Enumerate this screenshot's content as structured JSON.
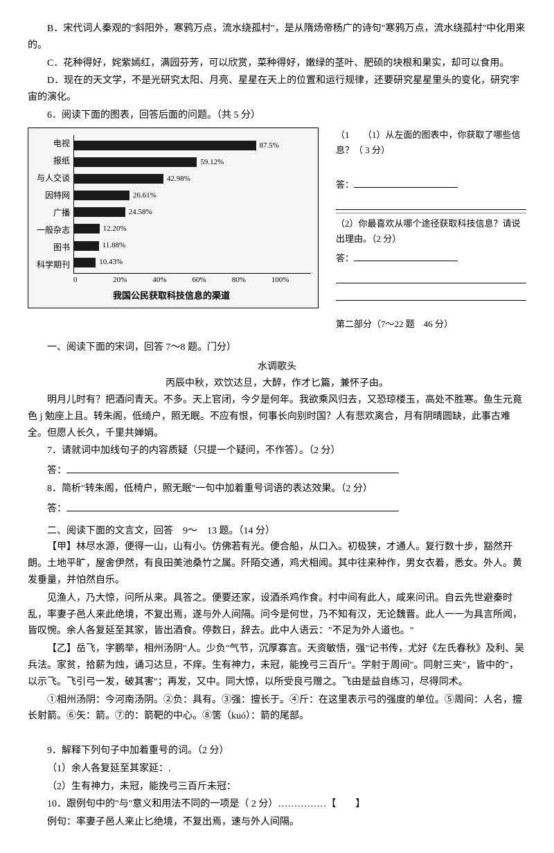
{
  "options": {
    "b": "B．宋代词人秦观的\"斜阳外，寒鸦万点，流水绕孤村\"，是从隋炀帝杨广的诗句\"寒鸦万点，流水绕孤村\"中化用来的。",
    "c": "C．花种得好，姹紫嫣红，满园芬芳，可以欣赏，菜种得好，嫩绿的茎叶、肥硕的块根和果实，却可以食用。",
    "d": "D．现在的天文学，不是光研究太阳、月亮、星星在天上的位置和运行规律，还要研究星星里头的变化，研究宇宙的演化。"
  },
  "q6": {
    "intro": "6．阅读下面的图表，回答后面的问题。（共 5 分）",
    "sub1_prefix": "（1",
    "sub1": "（1）从左面的图表中，你获取了哪些信息？（ 3 分）",
    "answer_label": "答：",
    "sub2": "（2）你最喜欢从哪个途径获取科技信息？请说出理由。（2 分）"
  },
  "chart": {
    "title": "我国公民获取科技信息的渠道",
    "y_labels": [
      "电视",
      "报纸",
      "与人交谈",
      "因特网",
      "广播",
      "一般杂志",
      "图书",
      "科学期刊"
    ],
    "values": [
      87.5,
      59.12,
      42.98,
      26.61,
      24.58,
      12.2,
      11.88,
      10.43
    ],
    "value_labels": [
      "87.5%",
      "59.12%",
      "42.98%",
      "26.61%",
      "24.58%",
      "12.20%",
      "11.88%",
      "10.43%"
    ],
    "x_ticks": [
      "0",
      "20%",
      "40%",
      "60%",
      "80%",
      "100%"
    ],
    "bar_color": "#1a1a1a",
    "bg_color": "#f5f5f5"
  },
  "part2_label": "第二部分（7～22 题　46 分）",
  "section1": {
    "heading": "一、阅读下面的宋词，回答 7～8 题。门分）",
    "title": "水调歌头",
    "subtitle": "丙辰中秋，欢饮达旦，大醉，作才匕篇，兼怀子由。",
    "body": "明月儿时有？把酒问青天。不多。天上官闭，今夕是何年。我欲乘风归去，又恐琼楼玉，高处不胜寒。鱼生元竟色 j 勉座上且。转朱阁，低绮户，照无眠。不应有恨，何事长向别时国？人有悲欢离合，月有阴晴圆缺，此事古难全。但愿人长久，千里共婵娟。",
    "q7": "7．请就词中加线句子的内容质疑（只提一个疑问，不作答）。（2 分）",
    "q7_ans": "答：",
    "q8": "8．简析\"转朱阁，低椅户，照无眠\"一句中加着重号词语的表达效果。（2 分）",
    "q8_ans": "答："
  },
  "section2": {
    "heading": "二、阅读下面的文言文，回答　9～　13 题。（14 分）",
    "jia_label": "【甲】",
    "jia_p1": "林尽水源，便得一山，山有小。仿佛若有光。便合船，从口入。初极狭，才通人。复行数十步，豁然开朗。土地平旷，屋舍伊然，有良田美池桑竹之属。阡陌交通，鸡犬相闻。其中往来种作，男女衣着，悉女。外人。黄发垂量，并怕然自乐。",
    "jia_p2": "见渔人，乃大惊，问所从来。具答之。便要还家，设酒杀鸡作食。村中间有此人，咸来问讯。自云先世避秦时乱，率妻子邑人来此绝境，不复出焉，遂与外人间隔。问今是何世，乃不知有汉，无论魏晋。此人一一为具言所闻，皆叹惋。余人各复延至其家，皆出酒食。停数日，辞去。此中人语云：\"不足为外人道也。\"",
    "yi_label": "【乙】",
    "yi_p1": "岳飞，字鹏举，相州汤阴\"人。少负\"气节，沉厚寡言。天资敏悟，强\"记书传，尤好《左氏春秋》及利、吴兵法。家贫，拾薪为烛，诵习达旦，不痒。生有神力，未冠，能挽弓三百斤\"。学射于周间\"。同射三夹\"，皆中的\"，以示飞。飞引弓一发，破其害\"；再发，又中。同大惊，以所受良弓赠之。飞由是益自练习，尽得同术。",
    "notes": "①相州汤阴：今河南汤阴。②负：具有。③强：擅长于。④斤：在这里表示弓的强度的单位。⑤周间：人名，擅长射箭。⑥矢：箭。⑦的：箭靶的中心。⑧筈（kuó）：箭的尾部。",
    "q9": "9．解释下列句子中加着重号的词。（2 分）",
    "q9_1": "（1）余人各复延至其家延：.",
    "q9_2": "（2）生有神力，未冠，能挽弓三百斤未冠：",
    "q10": "10．跟例句中的\"与\"意义和用法不同的一项是（ 2 分）……………【　　】",
    "q10_ex": "例句：率妻子邑人来止匕绝境，不复出焉，速与外人间隔。"
  }
}
